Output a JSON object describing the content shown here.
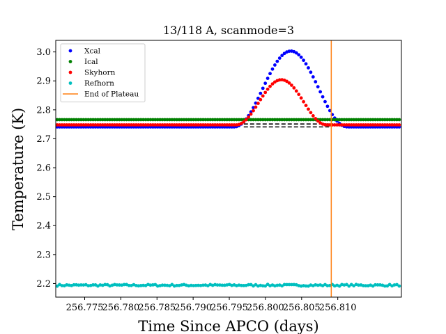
{
  "chart_data": {
    "type": "scatter",
    "title": "13/118 A, scanmode=3",
    "xlabel": "Time Since APCO (days)",
    "ylabel": "Temperature (K)",
    "xlim": [
      256.771,
      256.8188
    ],
    "ylim": [
      2.153,
      3.04
    ],
    "xticks": [
      256.775,
      256.78,
      256.785,
      256.79,
      256.795,
      256.8,
      256.805,
      256.81
    ],
    "xtick_labels": [
      "256.775",
      "256.780",
      "256.785",
      "256.790",
      "256.795",
      "256.800",
      "256.805",
      "256.810"
    ],
    "yticks": [
      2.2,
      2.3,
      2.4,
      2.5,
      2.6,
      2.7,
      2.8,
      2.9,
      3.0
    ],
    "ytick_labels": [
      "2.2",
      "2.3",
      "2.4",
      "2.5",
      "2.6",
      "2.7",
      "2.8",
      "2.9",
      "3.0"
    ],
    "legend_position": "top-left",
    "grid": false,
    "x_start": 256.7712,
    "x_end": 256.8185,
    "n_points": 144,
    "series": [
      {
        "name": "Xcal",
        "color": "#0000ff",
        "baseline": 2.741,
        "peak": 3.003,
        "peak_x": 256.8035,
        "half_width": 0.0065
      },
      {
        "name": "Ical",
        "color": "#008000",
        "baseline": 2.766
      },
      {
        "name": "Skyhorn",
        "color": "#ff0000",
        "baseline": 2.748,
        "peak": 2.904,
        "peak_x": 256.8022,
        "half_width": 0.0052
      },
      {
        "name": "Refhorn",
        "color": "#00bfbf",
        "baseline": 2.194
      }
    ],
    "reference_lines": [
      {
        "type": "hline",
        "y": 2.741,
        "style": "dashed",
        "color": "#000000"
      },
      {
        "type": "hline",
        "y": 2.751,
        "style": "dashed",
        "color": "#000000"
      }
    ],
    "marker_lines": [
      {
        "name": "End of Plateau",
        "x": 256.8091,
        "color": "#ff7f0e"
      }
    ]
  }
}
